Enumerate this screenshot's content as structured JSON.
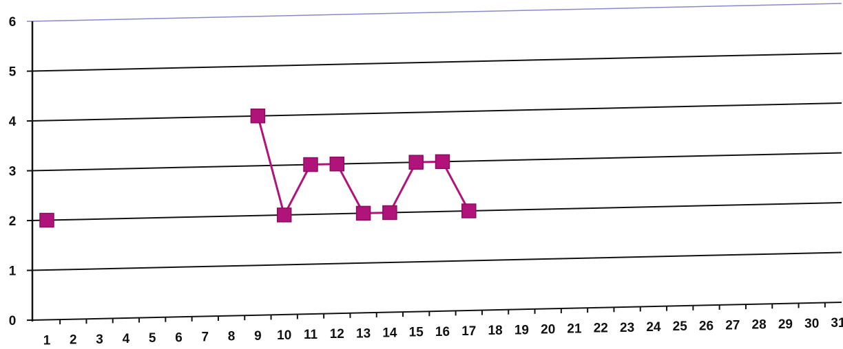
{
  "chart_data": {
    "type": "line",
    "title": "",
    "xlabel": "",
    "ylabel": "",
    "ylim": [
      0,
      6
    ],
    "y_ticks": [
      "0",
      "1",
      "2",
      "3",
      "4",
      "5",
      "6"
    ],
    "x": [
      "1",
      "2",
      "3",
      "4",
      "5",
      "6",
      "7",
      "8",
      "9",
      "10",
      "11",
      "12",
      "13",
      "14",
      "15",
      "16",
      "17",
      "18",
      "19",
      "20",
      "21",
      "22",
      "23",
      "24",
      "25",
      "26",
      "27",
      "28",
      "29",
      "30",
      "31"
    ],
    "grid": "horizontal",
    "legend": "none",
    "series": [
      {
        "color": "#b0137a",
        "marker": "square",
        "values": [
          2,
          null,
          null,
          null,
          null,
          null,
          null,
          null,
          4,
          2,
          3,
          3,
          2,
          2,
          3,
          3,
          2,
          null,
          null,
          null,
          null,
          null,
          null,
          null,
          null,
          null,
          null,
          null,
          null,
          null,
          null
        ]
      }
    ],
    "colors": {
      "grid": "#111111",
      "top_line": "#8888cc",
      "series": "#b0137a",
      "marker_edge": "#8a0e5e"
    }
  }
}
